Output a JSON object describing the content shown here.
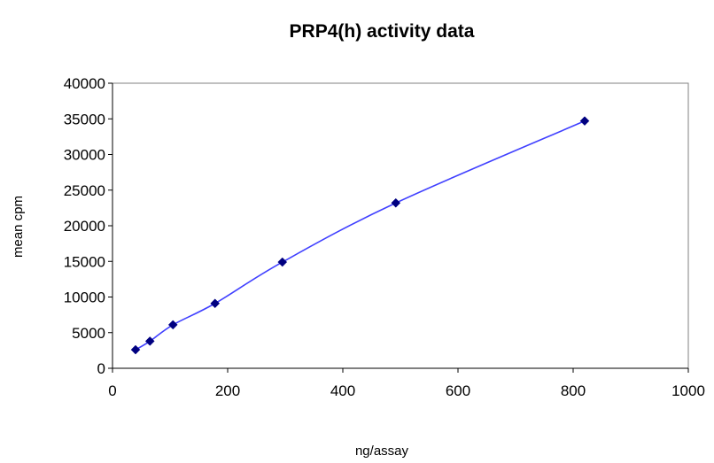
{
  "chart_data": {
    "type": "scatter",
    "title": "PRP4(h) activity data",
    "xlabel": "ng/assay",
    "ylabel": "mean cpm",
    "xlim": [
      0,
      1000
    ],
    "ylim": [
      0,
      40000
    ],
    "x_ticks": [
      0,
      200,
      400,
      600,
      800,
      1000
    ],
    "y_ticks": [
      0,
      5000,
      10000,
      15000,
      20000,
      25000,
      30000,
      35000,
      40000
    ],
    "grid": false,
    "legend": "none",
    "series": [
      {
        "x": [
          40,
          65,
          105,
          178,
          295,
          492,
          820
        ],
        "y": [
          2600,
          3800,
          6100,
          9100,
          14900,
          23200,
          34700
        ],
        "marker": "diamond",
        "line": "smooth",
        "line_color": "#4040ff",
        "marker_color": "#000080"
      }
    ]
  }
}
